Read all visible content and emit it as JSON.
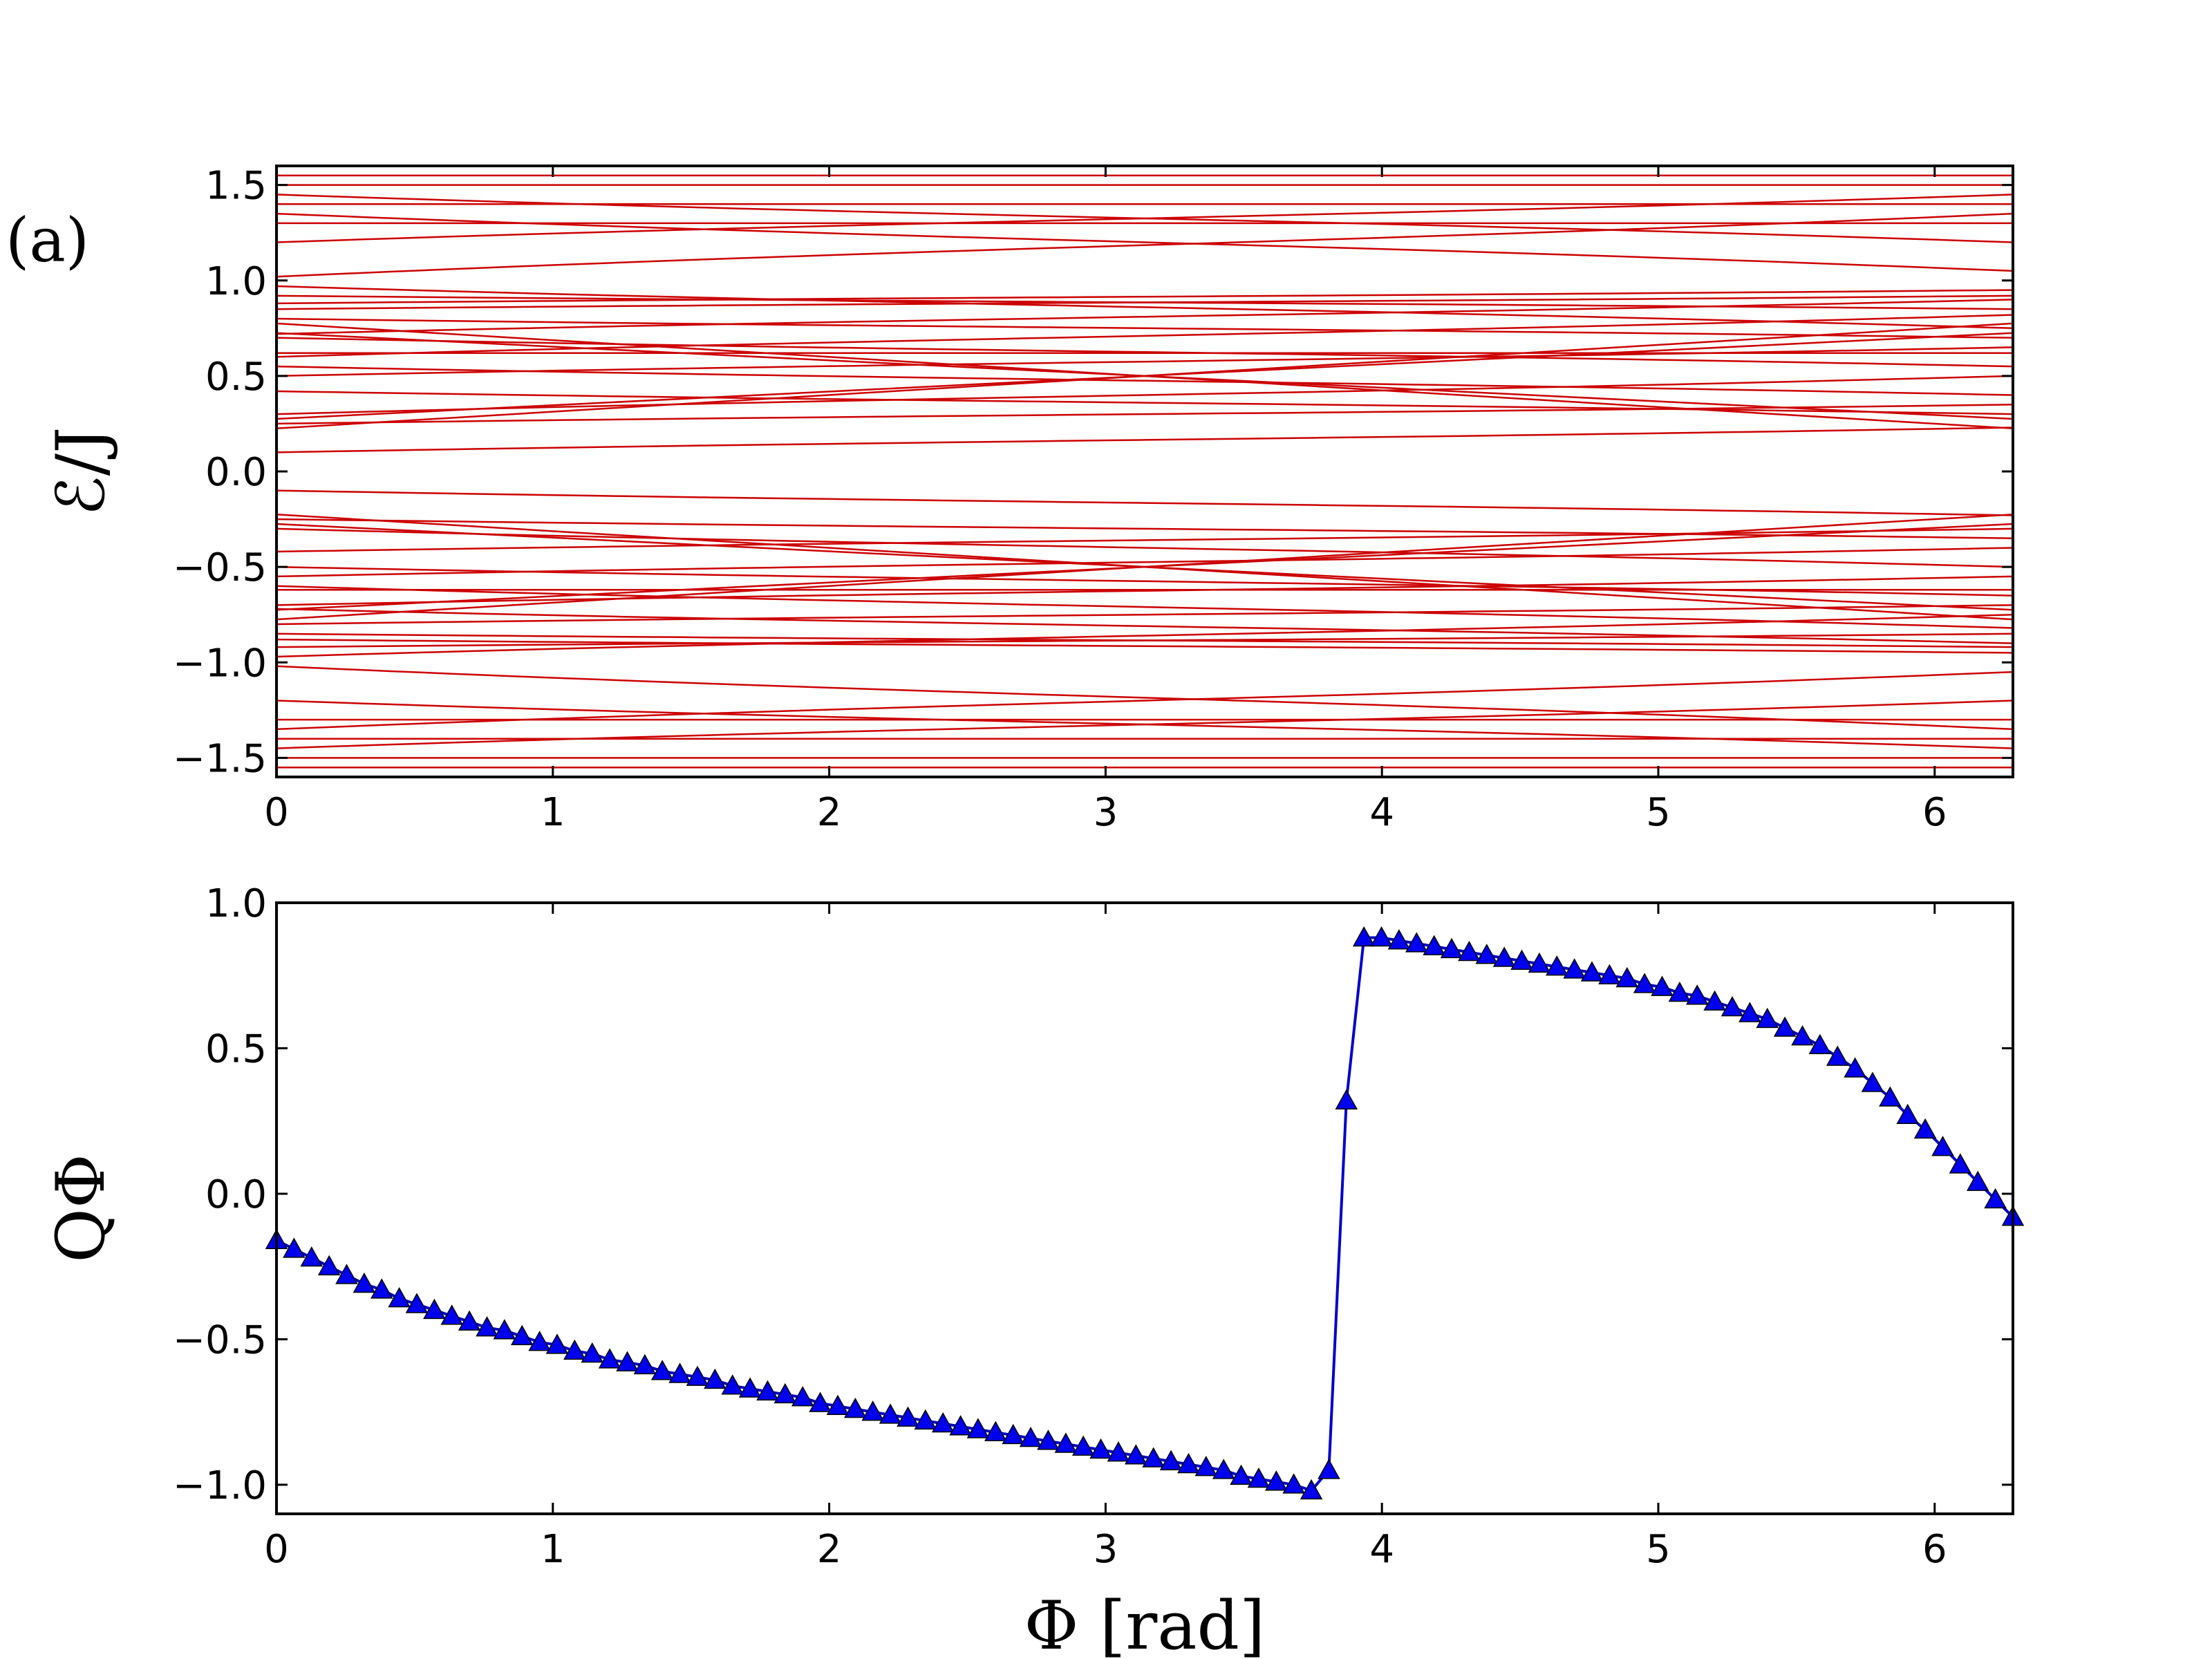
{
  "panel_tag": "(a)",
  "chart_data": [
    {
      "type": "line",
      "ylabel": "ℰ/J",
      "xlim": [
        0,
        6.2832
      ],
      "ylim": [
        -1.6,
        1.6
      ],
      "xticks": [
        0,
        1,
        2,
        3,
        4,
        5,
        6
      ],
      "xtick_labels": [
        "0",
        "1",
        "2",
        "3",
        "4",
        "5",
        "6"
      ],
      "yticks": [
        -1.5,
        -1.0,
        -0.5,
        0.0,
        0.5,
        1.0,
        1.5
      ],
      "ytick_labels": [
        "−1.5",
        "−1.0",
        "−0.5",
        "0.0",
        "0.5",
        "1.0",
        "1.5"
      ],
      "line_color": "#cc0000",
      "grid": false,
      "spectrum": {
        "constant_levels": [
          1.55,
          1.5,
          1.4,
          1.3,
          0.62,
          -0.62,
          -1.3,
          -1.4,
          -1.5,
          -1.55
        ],
        "crossing_bands": [
          {
            "start": 1.45,
            "end": 1.2
          },
          {
            "start": 1.35,
            "end": 1.05
          },
          {
            "start": 1.2,
            "end": 1.45
          },
          {
            "start": 1.02,
            "end": 1.35
          },
          {
            "start": 0.97,
            "end": 0.75
          },
          {
            "start": 0.92,
            "end": 0.85
          },
          {
            "start": 0.88,
            "end": 0.95
          },
          {
            "start": 0.85,
            "end": 0.92
          },
          {
            "start": 0.8,
            "end": 0.7
          },
          {
            "start": 0.72,
            "end": 0.9
          },
          {
            "start": 0.7,
            "end": 0.55
          },
          {
            "start": 0.6,
            "end": 0.82
          },
          {
            "start": 0.55,
            "end": 0.4
          },
          {
            "start": 0.5,
            "end": 0.65
          },
          {
            "start": 0.42,
            "end": 0.3
          },
          {
            "start": 0.3,
            "end": 0.5
          },
          {
            "start": 0.25,
            "end": 0.35
          },
          {
            "start": 0.1,
            "end": 0.23
          },
          {
            "start": -0.1,
            "end": -0.23
          },
          {
            "start": -0.25,
            "end": -0.35
          },
          {
            "start": -0.3,
            "end": -0.5
          },
          {
            "start": -0.42,
            "end": -0.3
          },
          {
            "start": -0.5,
            "end": -0.65
          },
          {
            "start": -0.55,
            "end": -0.4
          },
          {
            "start": -0.6,
            "end": -0.82
          },
          {
            "start": -0.7,
            "end": -0.55
          },
          {
            "start": -0.72,
            "end": -0.9
          },
          {
            "start": -0.8,
            "end": -0.7
          },
          {
            "start": -0.85,
            "end": -0.92
          },
          {
            "start": -0.88,
            "end": -0.95
          },
          {
            "start": -0.92,
            "end": -0.85
          },
          {
            "start": -0.97,
            "end": -0.75
          },
          {
            "start": -1.02,
            "end": -1.35
          },
          {
            "start": -1.2,
            "end": -1.45
          },
          {
            "start": -1.35,
            "end": -1.05
          },
          {
            "start": -1.45,
            "end": -1.2
          }
        ],
        "cross_points": [
          {
            "x": 3.14,
            "y": 0.5
          },
          {
            "x": 3.14,
            "y": -0.5
          }
        ]
      }
    },
    {
      "type": "line",
      "xlabel": "Φ [rad]",
      "ylabel": "QΦ",
      "xlim": [
        0,
        6.2832
      ],
      "ylim": [
        -1.1,
        1.0
      ],
      "xticks": [
        0,
        1,
        2,
        3,
        4,
        5,
        6
      ],
      "xtick_labels": [
        "0",
        "1",
        "2",
        "3",
        "4",
        "5",
        "6"
      ],
      "yticks": [
        -1.0,
        -0.5,
        0.0,
        0.5,
        1.0
      ],
      "ytick_labels": [
        "−1.0",
        "−0.5",
        "0.0",
        "0.5",
        "1.0"
      ],
      "line_color": "#0000cc",
      "marker": "triangle",
      "marker_color": "#0000ee",
      "grid": false,
      "series": [
        {
          "x": [
            0.0,
            0.0634,
            0.1269,
            0.1904,
            0.2538,
            0.3173,
            0.3808,
            0.4442,
            0.5077,
            0.5712,
            0.6346,
            0.6981,
            0.7616,
            0.825,
            0.8885,
            0.952,
            1.0154,
            1.0789,
            1.1424,
            1.2058,
            1.2693,
            1.3328,
            1.3962,
            1.4597,
            1.5232,
            1.5866,
            1.6501,
            1.7136,
            1.777,
            1.8405,
            1.904,
            1.9674,
            2.0309,
            2.0944,
            2.1578,
            2.2213,
            2.2848,
            2.3482,
            2.4117,
            2.4752,
            2.5386,
            2.6021,
            2.6656,
            2.729,
            2.7925,
            2.856,
            2.9194,
            2.9829,
            3.0464,
            3.1098,
            3.1733,
            3.2368,
            3.3002,
            3.3637,
            3.4272,
            3.4906,
            3.5541,
            3.6176,
            3.681,
            3.7445,
            3.808,
            3.8714,
            3.9349,
            3.9984,
            4.0618,
            4.1253,
            4.1888,
            4.2522,
            4.3157,
            4.3792,
            4.4426,
            4.5061,
            4.5696,
            4.633,
            4.6965,
            4.76,
            4.8234,
            4.8869,
            4.9504,
            5.0138,
            5.0773,
            5.1408,
            5.2042,
            5.2677,
            5.3312,
            5.3946,
            5.4581,
            5.5216,
            5.585,
            5.6485,
            5.712,
            5.7754,
            5.8389,
            5.9024,
            5.9658,
            6.0293,
            6.0928,
            6.1562,
            6.2197,
            6.2832
          ],
          "y": [
            -0.16,
            -0.19,
            -0.22,
            -0.25,
            -0.28,
            -0.31,
            -0.33,
            -0.36,
            -0.38,
            -0.4,
            -0.42,
            -0.44,
            -0.46,
            -0.47,
            -0.49,
            -0.51,
            -0.52,
            -0.54,
            -0.55,
            -0.57,
            -0.58,
            -0.59,
            -0.61,
            -0.62,
            -0.63,
            -0.64,
            -0.66,
            -0.67,
            -0.68,
            -0.69,
            -0.7,
            -0.72,
            -0.73,
            -0.74,
            -0.75,
            -0.76,
            -0.77,
            -0.78,
            -0.79,
            -0.8,
            -0.81,
            -0.82,
            -0.83,
            -0.84,
            -0.85,
            -0.86,
            -0.87,
            -0.88,
            -0.89,
            -0.9,
            -0.91,
            -0.92,
            -0.93,
            -0.94,
            -0.95,
            -0.97,
            -0.98,
            -0.99,
            -1.0,
            -1.02,
            -0.95,
            0.32,
            0.88,
            0.88,
            0.87,
            0.86,
            0.85,
            0.84,
            0.83,
            0.82,
            0.81,
            0.8,
            0.79,
            0.78,
            0.77,
            0.76,
            0.75,
            0.74,
            0.72,
            0.71,
            0.69,
            0.68,
            0.66,
            0.64,
            0.62,
            0.6,
            0.57,
            0.54,
            0.51,
            0.47,
            0.43,
            0.38,
            0.33,
            0.27,
            0.22,
            0.16,
            0.1,
            0.04,
            -0.02,
            -0.08
          ]
        }
      ]
    }
  ]
}
